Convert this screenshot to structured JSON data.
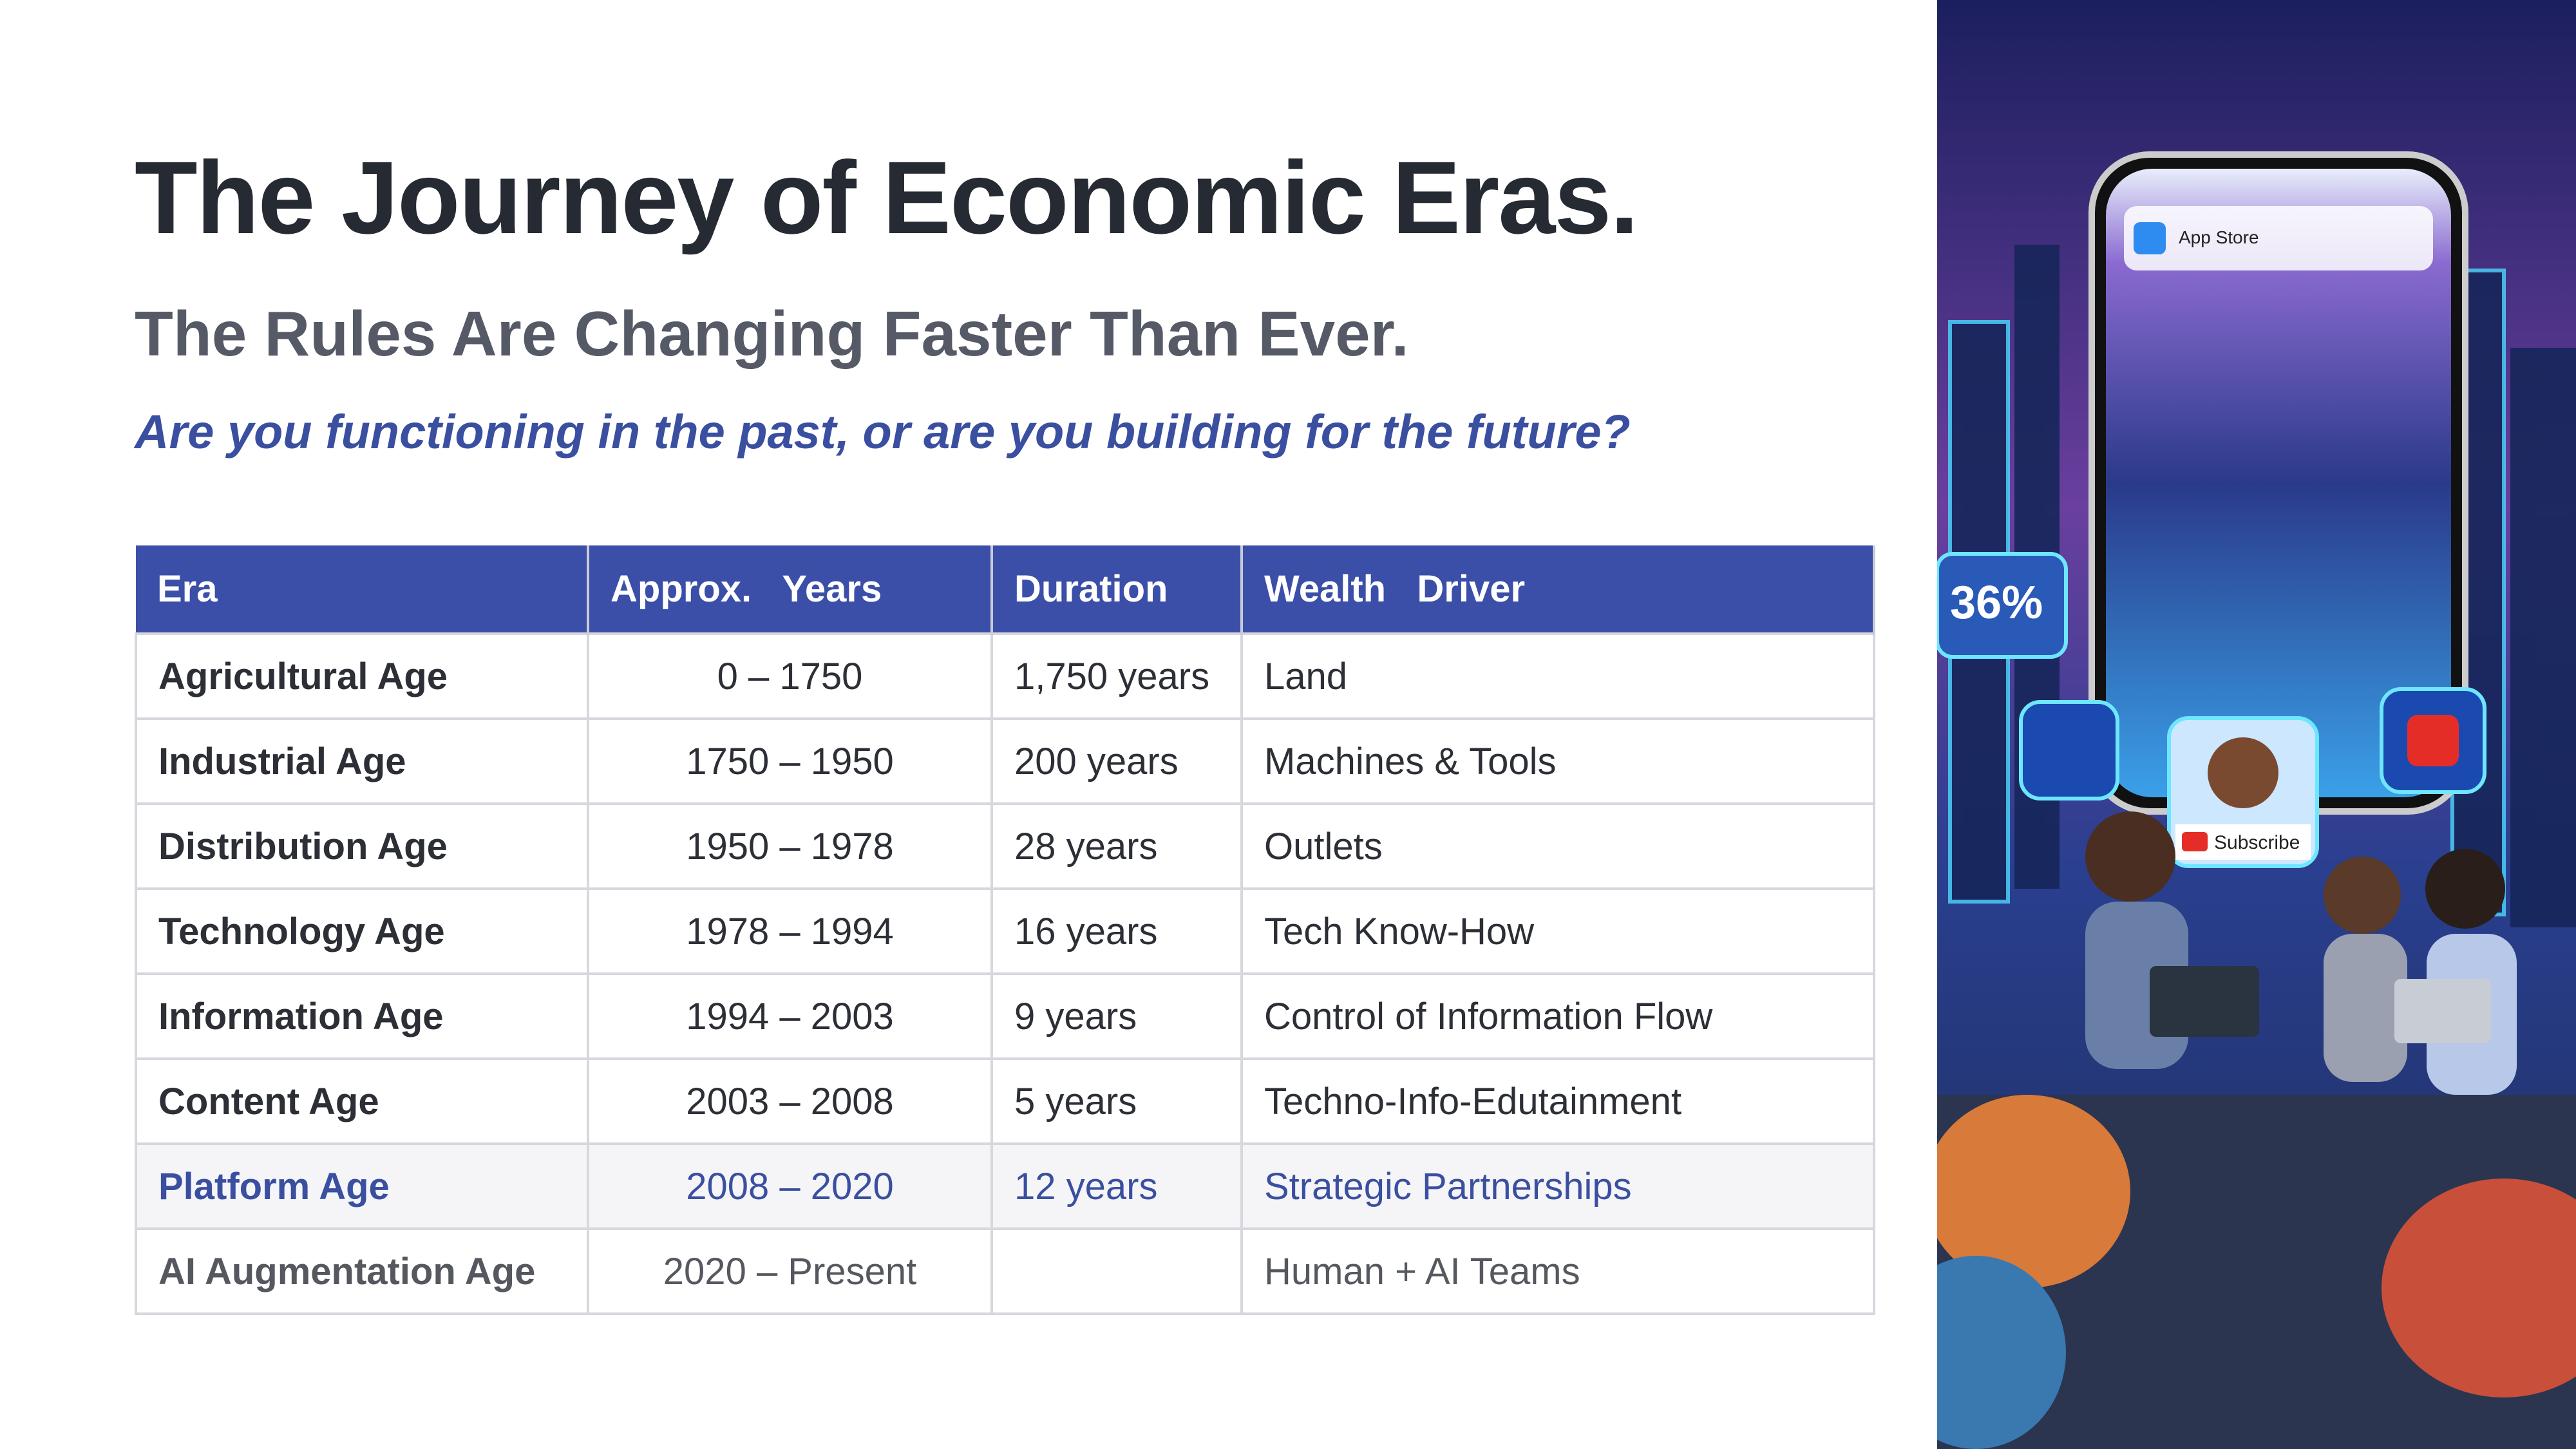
{
  "header": {
    "title": "The Journey of Economic Eras.",
    "subtitle": "The Rules Are Changing Faster Than Ever.",
    "question": "Are you functioning in the past, or are you building for the future?"
  },
  "table": {
    "columns": [
      "Era",
      "Approx.   Years",
      "Duration",
      "Wealth   Driver"
    ],
    "rows": [
      [
        "Agricultural Age",
        "0 – 1750",
        "1,750 years",
        "Land"
      ],
      [
        "Industrial Age",
        "1750 – 1950",
        "200 years",
        "Machines & Tools"
      ],
      [
        "Distribution Age",
        "1950 – 1978",
        "28 years",
        "Outlets"
      ],
      [
        "Technology Age",
        "1978 – 1994",
        "16 years",
        "Tech Know-How"
      ],
      [
        "Information Age",
        "1994 – 2003",
        "9 years",
        "Control of Information Flow"
      ],
      [
        "Content Age",
        "2003 – 2008",
        "5 years",
        "Techno-Info-Edutainment"
      ],
      [
        "Platform Age",
        "2008 – 2020",
        "12 years",
        "Strategic Partnerships"
      ],
      [
        "AI Augmentation Age",
        "2020 – Present",
        null,
        "Human + AI Teams"
      ]
    ]
  },
  "image": {
    "app_store": "App Store",
    "subscribe": "Subscribe",
    "badge": "36%"
  }
}
